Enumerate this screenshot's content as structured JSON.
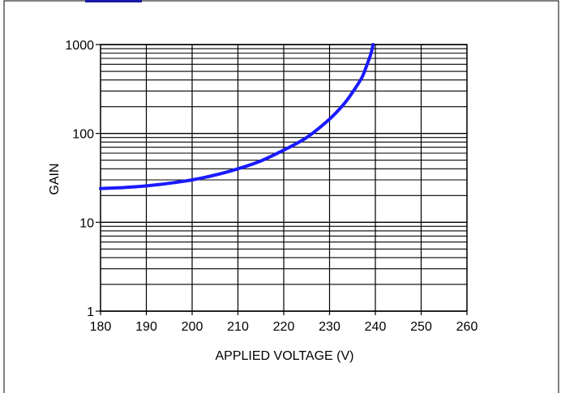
{
  "chart_data": {
    "type": "line",
    "title": "",
    "xlabel": "APPLIED VOLTAGE (V)",
    "ylabel": "GAIN",
    "xlim": [
      180,
      260
    ],
    "ylim": [
      1,
      1000
    ],
    "yscale": "log",
    "grid": true,
    "legend": "none",
    "x_ticks": [
      "180",
      "190",
      "200",
      "210",
      "220",
      "230",
      "240",
      "250",
      "260"
    ],
    "y_ticks": [
      "1",
      "10",
      "100",
      "1000"
    ],
    "series": [
      {
        "color": "#1a1aff",
        "points": [
          [
            180,
            24
          ],
          [
            185,
            24.6
          ],
          [
            190,
            25.7
          ],
          [
            195,
            27.5
          ],
          [
            200,
            30
          ],
          [
            205,
            34
          ],
          [
            210,
            40
          ],
          [
            215,
            49
          ],
          [
            220,
            65
          ],
          [
            225,
            90
          ],
          [
            230,
            145
          ],
          [
            233,
            210
          ],
          [
            235,
            290
          ],
          [
            237,
            420
          ],
          [
            238,
            560
          ],
          [
            239,
            780
          ],
          [
            239.5,
            1000
          ]
        ]
      }
    ]
  }
}
